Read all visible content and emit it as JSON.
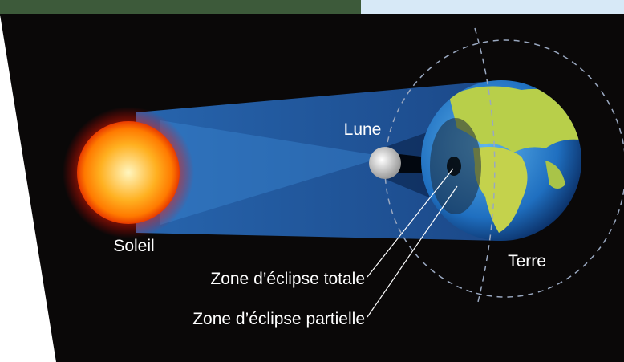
{
  "labels": {
    "sun": "Soleil",
    "moon": "Lune",
    "earth": "Terre",
    "total_zone": "Zone d’éclipse totale",
    "partial_zone": "Zone d’éclipse partielle"
  }
}
